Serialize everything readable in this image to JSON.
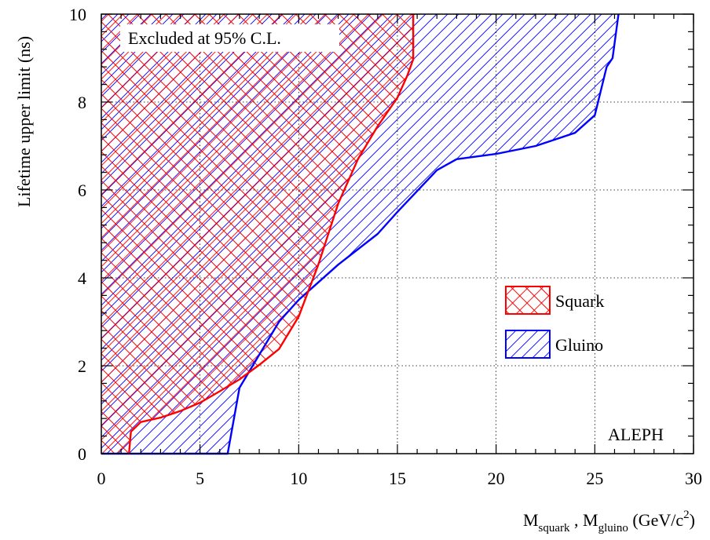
{
  "chart_data": {
    "type": "area",
    "xlabel_parts": [
      "M",
      "squark",
      " , M",
      "gluino",
      " (GeV/c",
      "2",
      ")"
    ],
    "ylabel": "Lifetime upper limit (ns)",
    "xlim": [
      0,
      30
    ],
    "ylim": [
      0,
      10
    ],
    "xticks": [
      0,
      5,
      10,
      15,
      20,
      25,
      30
    ],
    "yticks": [
      0,
      2,
      4,
      6,
      8,
      10
    ],
    "grid": true,
    "legend_position": "center-right",
    "annotations": {
      "excluded": "Excluded at 95% C.L.",
      "experiment": "ALEPH"
    },
    "series": [
      {
        "name": "Gluino",
        "color": "#0000ff",
        "hatch": "diagonal",
        "boundary": [
          [
            0,
            0
          ],
          [
            6.4,
            0
          ],
          [
            7,
            1.5
          ],
          [
            9,
            3
          ],
          [
            10,
            3.5
          ],
          [
            12,
            4.3
          ],
          [
            14,
            5
          ],
          [
            15,
            5.5
          ],
          [
            17,
            6.45
          ],
          [
            18,
            6.7
          ],
          [
            20,
            6.82
          ],
          [
            22,
            7
          ],
          [
            23,
            7.15
          ],
          [
            24,
            7.3
          ],
          [
            25,
            7.7
          ],
          [
            25.6,
            8.8
          ],
          [
            25.9,
            9
          ],
          [
            26.05,
            9.5
          ],
          [
            26.2,
            10
          ]
        ]
      },
      {
        "name": "Squark",
        "color": "#ff0000",
        "hatch": "cross",
        "boundary": [
          [
            1.4,
            0
          ],
          [
            1.5,
            0.5
          ],
          [
            2,
            0.72
          ],
          [
            3,
            0.82
          ],
          [
            4,
            0.97
          ],
          [
            5,
            1.16
          ],
          [
            6,
            1.42
          ],
          [
            7,
            1.69
          ],
          [
            8,
            2.02
          ],
          [
            9,
            2.38
          ],
          [
            10,
            3.12
          ],
          [
            11,
            4.31
          ],
          [
            12,
            5.69
          ],
          [
            13,
            6.7
          ],
          [
            14,
            7.45
          ],
          [
            15,
            8.1
          ],
          [
            15.5,
            8.6
          ],
          [
            15.8,
            8.97
          ],
          [
            15.8,
            10
          ]
        ]
      }
    ]
  }
}
